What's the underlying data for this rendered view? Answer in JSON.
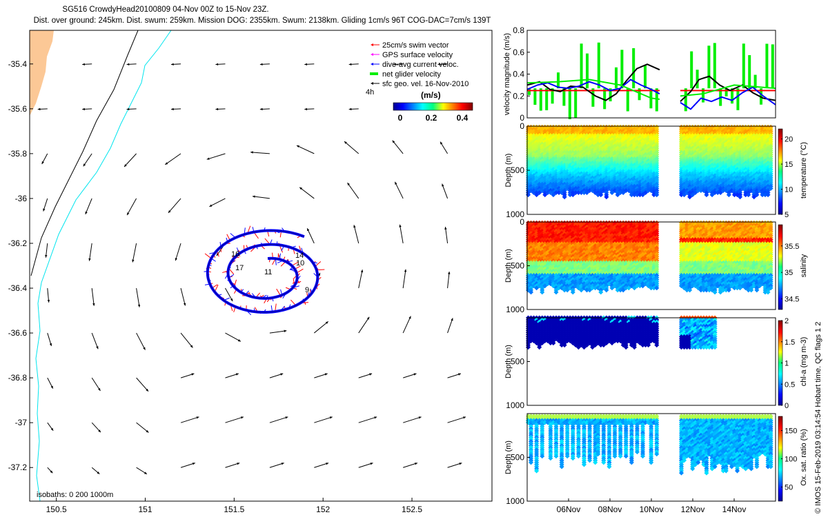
{
  "title_line1": "SG516 CrowdyHead20100809 04-Nov 00Z to 15-Nov 23Z.",
  "title_line2": "Dist. over ground: 245km. Dist. swum: 259km. Mission DOG: 2355km. Swum: 2138km. Gliding 1cm/s 96T COG-DAC=7cm/s 139T",
  "imos_stamp": "© IMOS 15-Feb-2019 03:14:54 Hobart time. QC flags 1  2",
  "colors": {
    "land": "#fcc896",
    "isobath_200": "#000000",
    "isobath_1000": "#00e5ee",
    "swim": "#ff0000",
    "gps": "#ff00ff",
    "dac": "#0000ff",
    "net": "#00ee00",
    "sfc": "#000000"
  },
  "map": {
    "legend": [
      {
        "label": "25cm/s swim vector",
        "color": "#ff0000"
      },
      {
        "label": "GPS surface velocity",
        "color": "#ff00ff"
      },
      {
        "label": "dive-avg current veloc.",
        "color": "#0000ff"
      },
      {
        "label": "net glider velocity",
        "color": "#00ee00"
      },
      {
        "label": "sfc geo. vel. 16-Nov-2010",
        "color": "#000000"
      }
    ],
    "colorbar_title": "(m/s)",
    "colorbar_ticks": [
      "0",
      "0.2",
      "0.4"
    ],
    "time_label": "4h",
    "isobath_text": "isobaths: 0   200  1000m",
    "day_labels": [
      "16",
      "17",
      "11",
      "14",
      "10",
      "9"
    ]
  },
  "chart_data": [
    {
      "type": "vector-map",
      "xlim": [
        150.35,
        152.95
      ],
      "ylim": [
        -37.35,
        -35.25
      ],
      "xticks": [
        150.5,
        151,
        151.5,
        152,
        152.5
      ],
      "xtick_labels": [
        "150.5",
        "151",
        "151.5",
        "152",
        "152.5"
      ],
      "yticks": [
        -35.4,
        -35.6,
        -35.8,
        -36,
        -36.2,
        -36.4,
        -36.6,
        -36.8,
        -37,
        -37.2
      ],
      "ytick_labels": [
        "-35.4",
        "-35.6",
        "-35.8",
        "-36",
        "-36.2",
        "-36.4",
        "-36.6",
        "-36.8",
        "-37",
        "-37.2"
      ],
      "eddy_center": [
        151.65,
        -36.31
      ]
    },
    {
      "type": "line",
      "ylabel": "velocity magnitude (m/s)",
      "ylim": [
        0,
        0.8
      ],
      "yticks": [
        0,
        0.2,
        0.4,
        0.6,
        0.8
      ],
      "ytick_labels": [
        "0",
        "0.2",
        "0.4",
        "0.6",
        "0.8"
      ],
      "xlim": [
        4,
        16
      ],
      "series": [
        {
          "color": "#ff0000",
          "x": [
            4,
            10.4,
            11.4,
            16
          ],
          "y": [
            0.25,
            0.25,
            0.25,
            0.25
          ]
        },
        {
          "color": "#000000",
          "x": [
            4,
            4.6,
            5.1,
            5.6,
            6.1,
            6.7,
            7.3,
            7.8,
            8.3,
            8.8,
            9.3,
            9.8,
            10.4,
            11.4,
            11.9,
            12.3,
            12.8,
            13.3,
            13.8,
            14.4,
            14.9,
            15.4,
            16
          ],
          "y": [
            0.3,
            0.33,
            0.26,
            0.24,
            0.29,
            0.28,
            0.2,
            0.16,
            0.22,
            0.34,
            0.45,
            0.49,
            0.44,
            0.15,
            0.24,
            0.35,
            0.38,
            0.3,
            0.25,
            0.3,
            0.23,
            0.18,
            0.16
          ]
        },
        {
          "color": "#0000ff",
          "x": [
            4,
            4.5,
            5,
            5.5,
            6,
            6.5,
            7,
            7.5,
            8,
            8.5,
            9,
            9.5,
            10,
            10.4,
            11.4,
            11.9,
            12.4,
            12.9,
            13.4,
            13.9,
            14.4,
            14.9,
            15.4,
            16
          ],
          "y": [
            0.26,
            0.3,
            0.32,
            0.28,
            0.27,
            0.29,
            0.33,
            0.3,
            0.25,
            0.27,
            0.35,
            0.3,
            0.26,
            0.22,
            0.14,
            0.08,
            0.18,
            0.15,
            0.19,
            0.16,
            0.23,
            0.28,
            0.2,
            0.12
          ]
        },
        {
          "color": "#00ee00",
          "x": [
            4,
            5.5,
            7,
            8.5,
            10,
            10.4,
            11.4,
            12.5,
            14,
            16
          ],
          "y": [
            0.32,
            0.33,
            0.35,
            0.3,
            0.18,
            0.17,
            0.2,
            0.22,
            0.3,
            0.27
          ]
        }
      ]
    },
    {
      "type": "scatter",
      "ylabel": "Depth (m)",
      "ylim": [
        1000,
        0
      ],
      "yticks": [
        0,
        500,
        1000
      ],
      "ytick_labels": [
        "0",
        "500",
        "1000"
      ],
      "colorbar_label": "temperature (°C)",
      "colorbar_range": [
        5,
        22
      ],
      "colorbar_ticks": [
        5,
        10,
        15,
        20
      ],
      "colorbar_tick_labels": [
        "5",
        "10",
        "15",
        "20"
      ]
    },
    {
      "type": "scatter",
      "ylabel": "Depth (m)",
      "ylim": [
        1000,
        0
      ],
      "yticks": [
        0,
        500,
        1000
      ],
      "ytick_labels": [
        "0",
        "500",
        "1000"
      ],
      "colorbar_label": "salinity",
      "colorbar_range": [
        34.3,
        35.9
      ],
      "colorbar_ticks": [
        34.5,
        35,
        35.5
      ],
      "colorbar_tick_labels": [
        "34.5",
        "35",
        "35.5"
      ]
    },
    {
      "type": "scatter",
      "ylabel": "Depth (m)",
      "ylim": [
        1000,
        0
      ],
      "yticks": [
        500,
        1000
      ],
      "ytick_labels": [
        "500",
        "1000"
      ],
      "colorbar_label": "chl-a (mg m-3)",
      "colorbar_range": [
        0,
        2
      ],
      "colorbar_ticks": [
        0,
        0.5,
        1,
        1.5,
        2
      ],
      "colorbar_tick_labels": [
        "0",
        "0.5",
        "1",
        "1.5",
        "2"
      ]
    },
    {
      "type": "scatter",
      "ylabel": "Depth (m)",
      "ylim": [
        1000,
        0
      ],
      "yticks": [
        500,
        1000
      ],
      "ytick_labels": [
        "500",
        "1000"
      ],
      "colorbar_label": "Ox. sat. ratio (%)",
      "colorbar_range": [
        25,
        175
      ],
      "colorbar_ticks": [
        50,
        100,
        150
      ],
      "colorbar_tick_labels": [
        "50",
        "100",
        "150"
      ],
      "xlim": [
        4,
        16
      ],
      "xticks": [
        6,
        8,
        10,
        12,
        14
      ],
      "xtick_labels": [
        "06Nov",
        "08Nov",
        "10Nov",
        "12Nov",
        "14Nov"
      ]
    }
  ]
}
